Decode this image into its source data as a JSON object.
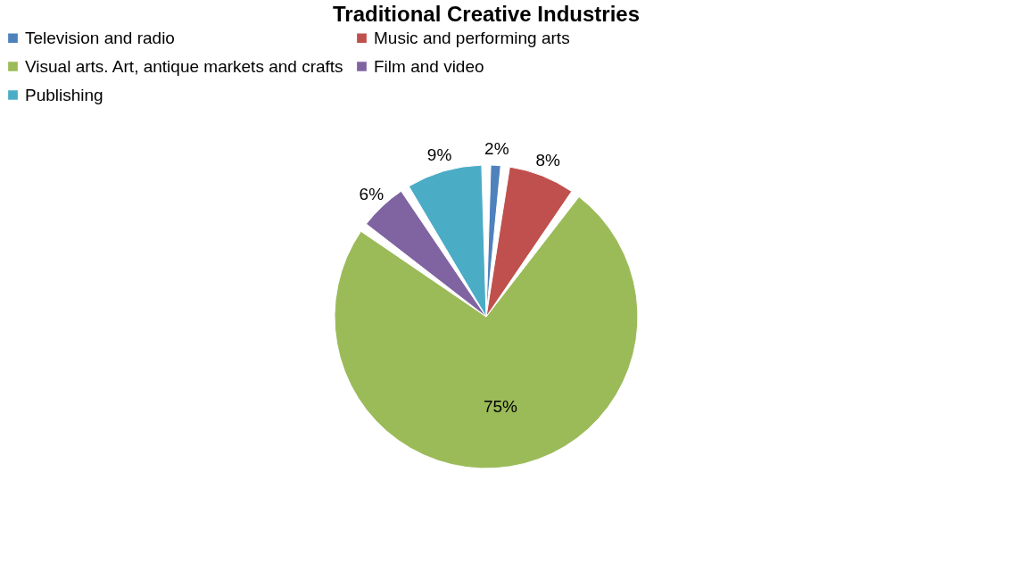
{
  "chart_data": {
    "type": "pie",
    "title": "Traditional Creative Industries",
    "categories": [
      "Television and radio",
      "Music and performing arts",
      "Visual arts. Art, antique markets and crafts",
      "Film and video",
      "Publishing"
    ],
    "values": [
      2,
      8,
      75,
      6,
      9
    ],
    "colors": [
      "#4f81bd",
      "#c0504d",
      "#9bbb59",
      "#8064a2",
      "#4bacc6"
    ],
    "value_labels": [
      "2%",
      "8%",
      "75%",
      "6%",
      "9%"
    ],
    "legend": "top"
  }
}
